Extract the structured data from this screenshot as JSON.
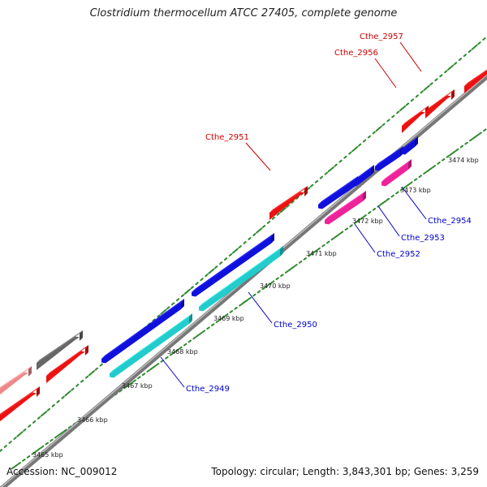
{
  "title": "Clostridium thermocellum ATCC 27405, complete genome",
  "footer": {
    "accession": "Accession: NC_009012",
    "stats": "Topology: circular; Length: 3,843,301 bp; Genes: 3,259"
  },
  "colors": {
    "backbone": "#8a8a8a",
    "tick": "#2e8b2e",
    "label_forward": "#cc0000",
    "label_reverse": "#0000cc",
    "gene_red": "#ee1111",
    "gene_blue": "#1010dd",
    "gene_cyan": "#22cccc",
    "gene_magenta": "#ee2299",
    "gene_gray": "#666666",
    "gene_pink": "#ee8888"
  },
  "ruler": {
    "unit": "kbp",
    "labels": [
      "3465 kbp",
      "3466 kbp",
      "3467 kbp",
      "3468 kbp",
      "3469 kbp",
      "3470 kbp",
      "3471 kbp",
      "3472 kbp",
      "3473 kbp",
      "3474 kbp"
    ]
  },
  "genes": [
    {
      "id": "unlabeled-pink",
      "color": "gene_pink",
      "strand": "+",
      "label": ""
    },
    {
      "id": "unlabeled-red-a",
      "color": "gene_red",
      "strand": "+",
      "label": ""
    },
    {
      "id": "unlabeled-gray",
      "color": "gene_gray",
      "strand": "+",
      "label": ""
    },
    {
      "id": "unlabeled-red-b",
      "color": "gene_red",
      "strand": "+",
      "label": ""
    },
    {
      "id": "Cthe_2949",
      "color": "gene_cyan",
      "strand": "-",
      "label": "Cthe_2949"
    },
    {
      "id": "Cthe_2949-blue",
      "color": "gene_blue",
      "strand": "-",
      "label": ""
    },
    {
      "id": "Cthe_2950",
      "color": "gene_cyan",
      "strand": "-",
      "label": "Cthe_2950"
    },
    {
      "id": "Cthe_2950-blue",
      "color": "gene_blue",
      "strand": "-",
      "label": ""
    },
    {
      "id": "Cthe_2951",
      "color": "gene_red",
      "strand": "+",
      "label": "Cthe_2951"
    },
    {
      "id": "Cthe_2952",
      "color": "gene_magenta",
      "strand": "-",
      "label": "Cthe_2952"
    },
    {
      "id": "Cthe_2952-blue",
      "color": "gene_blue",
      "strand": "-",
      "label": ""
    },
    {
      "id": "Cthe_2953",
      "color": "gene_blue",
      "strand": "-",
      "label": "Cthe_2953"
    },
    {
      "id": "Cthe_2954",
      "color": "gene_magenta",
      "strand": "-",
      "label": "Cthe_2954"
    },
    {
      "id": "Cthe_2954-blue-a",
      "color": "gene_blue",
      "strand": "-",
      "label": ""
    },
    {
      "id": "Cthe_2954-blue-b",
      "color": "gene_blue",
      "strand": "-",
      "label": ""
    },
    {
      "id": "Cthe_2956",
      "color": "gene_red",
      "strand": "+",
      "label": "Cthe_2956"
    },
    {
      "id": "Cthe_2957",
      "color": "gene_red",
      "strand": "+",
      "label": "Cthe_2957"
    },
    {
      "id": "Cthe_2958",
      "color": "gene_red",
      "strand": "+",
      "label": ""
    }
  ]
}
